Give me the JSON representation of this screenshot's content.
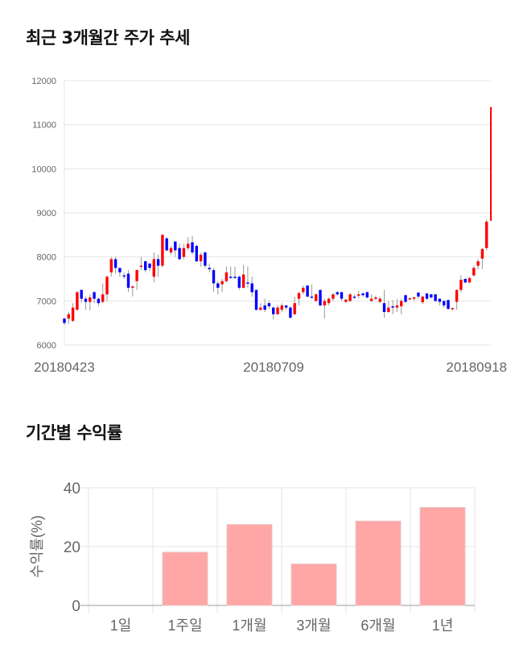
{
  "price_section": {
    "title": "최근 3개월간 주가 추세"
  },
  "return_section": {
    "title": "기간별 수익률"
  },
  "chart_data": [
    {
      "type": "candlestick",
      "title": "최근 3개월간 주가 추세",
      "ylim": [
        6000,
        12000
      ],
      "yticks": [
        "6000",
        "7000",
        "8000",
        "9000",
        "10000",
        "11000",
        "12000"
      ],
      "xtick_labels": [
        "20180423",
        "20180709",
        "20180918"
      ],
      "grid": true,
      "up_color": "#ff0000",
      "down_color": "#0000ff",
      "candles_ocHL": [
        [
          6600,
          6500,
          6620,
          6450
        ],
        [
          6600,
          6700,
          6750,
          6480
        ],
        [
          6550,
          6850,
          6950,
          6520
        ],
        [
          6800,
          7200,
          7220,
          6780
        ],
        [
          7250,
          7050,
          7260,
          6960
        ],
        [
          7050,
          6980,
          7100,
          6800
        ],
        [
          6980,
          7080,
          7150,
          6780
        ],
        [
          7200,
          7050,
          7220,
          6950
        ],
        [
          7050,
          6950,
          7080,
          6880
        ],
        [
          6980,
          7150,
          7400,
          6950
        ],
        [
          7150,
          7550,
          7580,
          7000
        ],
        [
          7650,
          7950,
          8000,
          7550
        ],
        [
          7950,
          7750,
          8000,
          7620
        ],
        [
          7750,
          7650,
          7750,
          7550
        ],
        [
          7580,
          7560,
          7650,
          7500
        ],
        [
          7620,
          7300,
          7700,
          7200
        ],
        [
          7300,
          7330,
          7350,
          7100
        ],
        [
          7450,
          7700,
          7720,
          7250
        ],
        [
          7780,
          7800,
          8000,
          7700
        ],
        [
          7900,
          7700,
          7920,
          7650
        ],
        [
          7850,
          7750,
          7850,
          7680
        ],
        [
          7550,
          7950,
          8100,
          7420
        ],
        [
          7950,
          7800,
          8050,
          7550
        ],
        [
          7800,
          8500,
          8520,
          7760
        ],
        [
          8420,
          8150,
          8450,
          8120
        ],
        [
          8100,
          8200,
          8250,
          8050
        ],
        [
          8350,
          8150,
          8350,
          8000
        ],
        [
          8200,
          7950,
          8300,
          7920
        ],
        [
          8000,
          8200,
          8300,
          7950
        ],
        [
          8200,
          8300,
          8450,
          8150
        ],
        [
          8330,
          8100,
          8480,
          8050
        ],
        [
          8250,
          7900,
          8280,
          7880
        ],
        [
          7900,
          8050,
          8100,
          7780
        ],
        [
          8100,
          7800,
          8120,
          7750
        ],
        [
          7750,
          7720,
          7850,
          7650
        ],
        [
          7700,
          7400,
          7750,
          7200
        ],
        [
          7400,
          7300,
          7450,
          7150
        ],
        [
          7380,
          7450,
          7500,
          7200
        ],
        [
          7450,
          7650,
          7780,
          7420
        ],
        [
          7550,
          7540,
          7780,
          7500
        ],
        [
          7550,
          7530,
          7780,
          7500
        ],
        [
          7550,
          7300,
          7580,
          7250
        ],
        [
          7300,
          7600,
          7820,
          7280
        ],
        [
          7420,
          7400,
          7780,
          7300
        ],
        [
          7400,
          7200,
          7550,
          7100
        ],
        [
          7250,
          6800,
          7260,
          6780
        ],
        [
          6800,
          6850,
          6950,
          6780
        ],
        [
          6900,
          6800,
          7050,
          6750
        ],
        [
          6950,
          6880,
          7000,
          6820
        ],
        [
          6850,
          6700,
          6880,
          6580
        ],
        [
          6700,
          6850,
          6900,
          6680
        ],
        [
          6800,
          6900,
          6950,
          6750
        ],
        [
          6900,
          6850,
          6900,
          6800
        ],
        [
          6850,
          6620,
          6880,
          6600
        ],
        [
          6700,
          6950,
          7100,
          6680
        ],
        [
          7050,
          7180,
          7200,
          6900
        ],
        [
          7200,
          7300,
          7350,
          7150
        ],
        [
          7350,
          7100,
          7350,
          7080
        ],
        [
          7100,
          7080,
          7380,
          7050
        ],
        [
          7000,
          7150,
          7170,
          6980
        ],
        [
          7250,
          6900,
          7260,
          6880
        ],
        [
          6900,
          7000,
          7050,
          6600
        ],
        [
          6950,
          7050,
          7080,
          6900
        ],
        [
          7050,
          7150,
          7180,
          7000
        ],
        [
          7200,
          7150,
          7220,
          7120
        ],
        [
          7200,
          7050,
          7210,
          7000
        ],
        [
          6980,
          7030,
          7050,
          6960
        ],
        [
          7000,
          7150,
          7180,
          6980
        ],
        [
          7100,
          7080,
          7150,
          7050
        ],
        [
          7120,
          7150,
          7230,
          7060
        ],
        [
          7170,
          7130,
          7200,
          7100
        ],
        [
          7200,
          7080,
          7210,
          7050
        ],
        [
          7000,
          7050,
          7150,
          6980
        ],
        [
          7050,
          7080,
          7120,
          7020
        ],
        [
          6980,
          7050,
          7100,
          6950
        ],
        [
          6950,
          6750,
          7250,
          6620
        ],
        [
          6750,
          6850,
          7000,
          6730
        ],
        [
          6880,
          6850,
          7020,
          6700
        ],
        [
          6850,
          6900,
          7050,
          6750
        ],
        [
          6880,
          7000,
          7050,
          6700
        ],
        [
          7130,
          6980,
          7150,
          6960
        ],
        [
          7050,
          7060,
          7080,
          7030
        ],
        [
          7050,
          7080,
          7100,
          7000
        ],
        [
          7190,
          7100,
          7200,
          7050
        ],
        [
          6970,
          7100,
          7120,
          6930
        ],
        [
          7170,
          7050,
          7180,
          7020
        ],
        [
          7150,
          7080,
          7160,
          7050
        ],
        [
          7150,
          7000,
          7160,
          6980
        ],
        [
          7050,
          6980,
          7060,
          6900
        ],
        [
          7000,
          6900,
          7010,
          6850
        ],
        [
          7020,
          6820,
          7040,
          6800
        ],
        [
          6830,
          6840,
          6850,
          6780
        ],
        [
          6980,
          7250,
          7260,
          6800
        ],
        [
          7250,
          7480,
          7580,
          7200
        ],
        [
          7500,
          7420,
          7520,
          7400
        ],
        [
          7420,
          7520,
          7550,
          7400
        ],
        [
          7580,
          7750,
          7800,
          7550
        ],
        [
          7800,
          7900,
          7950,
          7720
        ],
        [
          7960,
          8180,
          8200,
          7720
        ],
        [
          8200,
          8800,
          8850,
          8150
        ],
        [
          8820,
          11400,
          11400,
          8820
        ]
      ]
    },
    {
      "type": "bar",
      "title": "기간별 수익률",
      "categories": [
        "1일",
        "1주일",
        "1개월",
        "3개월",
        "6개월",
        "1년"
      ],
      "values": [
        0,
        18.1,
        27.5,
        14.1,
        28.7,
        33.3
      ],
      "ylabel": "수익률(%)",
      "ylim": [
        0,
        40
      ],
      "yticks": [
        "0",
        "20",
        "40"
      ],
      "bar_color": "#ffa6a6",
      "grid": true
    }
  ]
}
